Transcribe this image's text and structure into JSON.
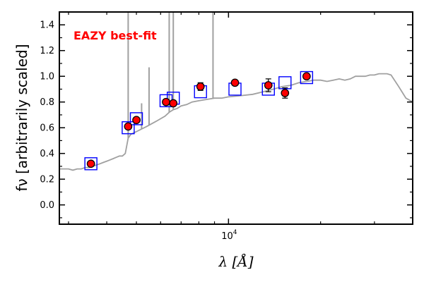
{
  "chart_data": {
    "type": "scatter",
    "annotation": "EAZY best-fit",
    "annotation_color": "#ff0000",
    "xlabel": "λ [Å]",
    "ylabel": "fν [arbitrarily scaled]",
    "x_scale": "log",
    "xlim": [
      2800,
      40000
    ],
    "ylim": [
      -0.15,
      1.5
    ],
    "x_tick_label": "10^4",
    "x_major_tick": 10000,
    "x_minor_ticks": [
      3000,
      4000,
      5000,
      6000,
      7000,
      8000,
      9000,
      20000,
      30000
    ],
    "y_ticks": [
      "0.0",
      "0.2",
      "0.4",
      "0.6",
      "0.8",
      "1.0",
      "1.2",
      "1.4"
    ],
    "y_tick_values": [
      0.0,
      0.2,
      0.4,
      0.6,
      0.8,
      1.0,
      1.2,
      1.4
    ],
    "colors": {
      "template": "#a0a0a0",
      "model_box": "#0000ff",
      "observed_fill": "#ff0000",
      "observed_edge": "#000000"
    },
    "series": [
      {
        "type": "line",
        "x": [
          2800,
          2900,
          3000,
          3100,
          3200,
          3300,
          3400,
          3500,
          3600,
          3700,
          3800,
          3900,
          4000,
          4100,
          4200,
          4300,
          4400,
          4500,
          4600,
          4700,
          4800,
          4900,
          5000,
          5200,
          5400,
          5600,
          5800,
          6000,
          6200,
          6400,
          6600,
          6800,
          7000,
          7300,
          7600,
          8000,
          8500,
          9000,
          9500,
          10000,
          11000,
          12000,
          13000,
          14000,
          15000,
          16000,
          17000,
          18000,
          19000,
          20000,
          21000,
          22000,
          23000,
          24000,
          25000,
          26000,
          27000,
          28000,
          29000,
          30000,
          31000,
          32000,
          33000,
          34000,
          36000,
          38000,
          40000
        ],
        "y": [
          0.28,
          0.28,
          0.28,
          0.27,
          0.28,
          0.28,
          0.29,
          0.29,
          0.3,
          0.31,
          0.32,
          0.33,
          0.34,
          0.35,
          0.36,
          0.37,
          0.38,
          0.38,
          0.4,
          0.52,
          0.55,
          0.56,
          0.57,
          0.59,
          0.61,
          0.63,
          0.65,
          0.67,
          0.69,
          0.72,
          0.74,
          0.75,
          0.77,
          0.78,
          0.8,
          0.81,
          0.82,
          0.83,
          0.83,
          0.84,
          0.85,
          0.86,
          0.88,
          0.9,
          0.92,
          0.93,
          0.95,
          0.96,
          0.97,
          0.97,
          0.96,
          0.97,
          0.98,
          0.97,
          0.98,
          1.0,
          1.0,
          1.0,
          1.01,
          1.01,
          1.02,
          1.02,
          1.02,
          1.01,
          0.92,
          0.83,
          0.8
        ]
      },
      {
        "type": "line",
        "description": "template emission lines",
        "x": [
          4700,
          5200,
          5500,
          6400,
          6600,
          8900
        ],
        "y": [
          1.5,
          0.79,
          1.07,
          1.5,
          1.5,
          1.5
        ]
      },
      {
        "type": "scatter",
        "description": "model photometry",
        "x": [
          3550,
          4700,
          5000,
          6250,
          6600,
          8100,
          10500,
          13500,
          15300,
          18000
        ],
        "y": [
          0.32,
          0.6,
          0.67,
          0.81,
          0.83,
          0.88,
          0.9,
          0.9,
          0.95,
          0.99
        ]
      },
      {
        "type": "scatter",
        "description": "observed photometry",
        "x": [
          3550,
          4700,
          5000,
          6250,
          6600,
          8100,
          10500,
          13500,
          15300,
          18000
        ],
        "y": [
          0.32,
          0.61,
          0.66,
          0.8,
          0.79,
          0.92,
          0.95,
          0.93,
          0.87,
          1.0
        ],
        "yerr": [
          0.01,
          0.01,
          0.01,
          0.01,
          0.01,
          0.03,
          0.02,
          0.05,
          0.04,
          0.02
        ]
      }
    ]
  }
}
